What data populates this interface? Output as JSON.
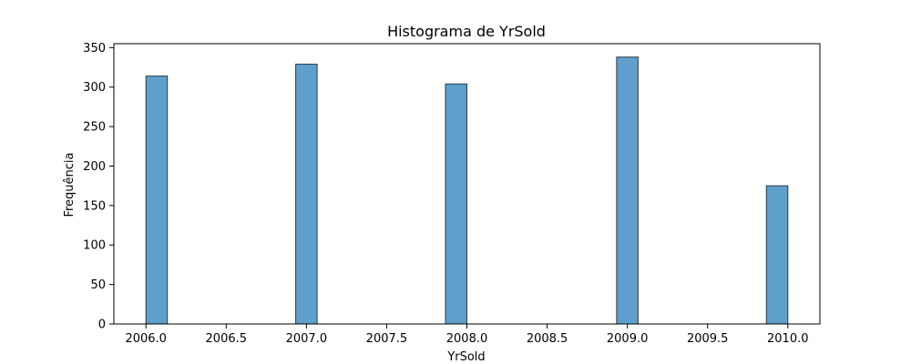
{
  "chart_data": {
    "type": "bar",
    "title": "Histograma de YrSold",
    "xlabel": "YrSold",
    "ylabel": "Frequência",
    "xlim": [
      2005.8,
      2010.2
    ],
    "ylim": [
      0,
      355
    ],
    "x_ticks": [
      2006.0,
      2006.5,
      2007.0,
      2007.5,
      2008.0,
      2008.5,
      2009.0,
      2009.5,
      2010.0
    ],
    "x_tick_labels": [
      "2006.0",
      "2006.5",
      "2007.0",
      "2007.5",
      "2008.0",
      "2008.5",
      "2009.0",
      "2009.5",
      "2010.0"
    ],
    "y_ticks": [
      0,
      50,
      100,
      150,
      200,
      250,
      300,
      350
    ],
    "y_tick_labels": [
      "0",
      "50",
      "100",
      "150",
      "200",
      "250",
      "300",
      "350"
    ],
    "bins": [
      {
        "x0": 2006.0,
        "x1": 2006.1333,
        "count": 314
      },
      {
        "x0": 2006.9333,
        "x1": 2007.0667,
        "count": 329
      },
      {
        "x0": 2007.8667,
        "x1": 2008.0,
        "count": 304
      },
      {
        "x0": 2008.9333,
        "x1": 2009.0667,
        "count": 338
      },
      {
        "x0": 2009.8667,
        "x1": 2010.0,
        "count": 175
      }
    ],
    "bar_color": "#5f9fcc",
    "edge_color": "#2b3a44",
    "grid": false,
    "legend": "none"
  }
}
